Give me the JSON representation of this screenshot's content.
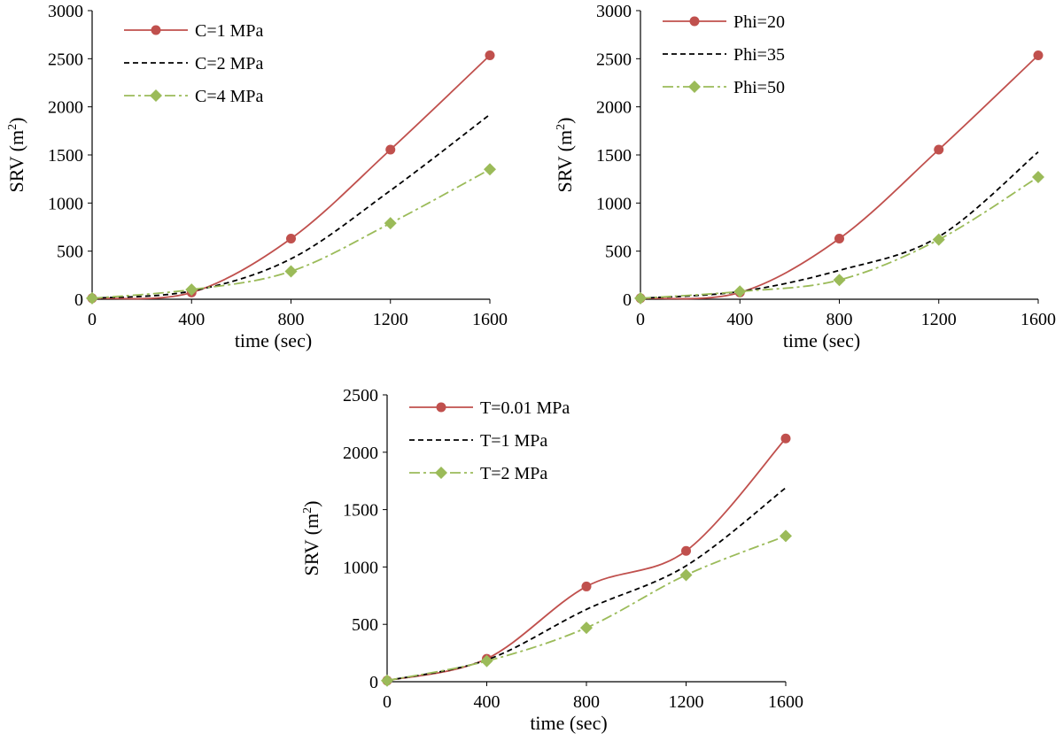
{
  "colors": {
    "red": "#c0504d",
    "black": "#000000",
    "green": "#9bbb59"
  },
  "chart_data": [
    {
      "type": "line",
      "xlabel": "time (sec)",
      "ylabel": "SRV (m",
      "ylabel_sup": "2",
      "ylabel_end": ")",
      "xlim": [
        0,
        1600
      ],
      "ylim": [
        0,
        3000
      ],
      "x_ticks": [
        "0",
        "400",
        "800",
        "1200",
        "1600"
      ],
      "y_ticks": [
        "0",
        "500",
        "1000",
        "1500",
        "2000",
        "2500",
        "3000"
      ],
      "legend_position": "top-left",
      "series": [
        {
          "name": "C=1 MPa",
          "style": "solid-circle",
          "x": [
            0,
            400,
            800,
            1200,
            1600
          ],
          "y": [
            10,
            70,
            630,
            1555,
            2535
          ]
        },
        {
          "name": "C=2 MPa",
          "style": "dashed",
          "x": [
            0,
            400,
            800,
            1200,
            1600
          ],
          "y": [
            10,
            85,
            420,
            1130,
            1920
          ]
        },
        {
          "name": "C=4 MPa",
          "style": "dashdot-diamond",
          "x": [
            0,
            400,
            800,
            1200,
            1600
          ],
          "y": [
            10,
            100,
            290,
            790,
            1350
          ]
        }
      ]
    },
    {
      "type": "line",
      "xlabel": "time (sec)",
      "ylabel": "SRV (m",
      "ylabel_sup": "2",
      "ylabel_end": ")",
      "xlim": [
        0,
        1600
      ],
      "ylim": [
        0,
        3000
      ],
      "x_ticks": [
        "0",
        "400",
        "800",
        "1200",
        "1600"
      ],
      "y_ticks": [
        "0",
        "500",
        "1000",
        "1500",
        "2000",
        "2500",
        "3000"
      ],
      "legend_position": "top-left",
      "series": [
        {
          "name": "Phi=20",
          "style": "solid-circle",
          "x": [
            0,
            400,
            800,
            1200,
            1600
          ],
          "y": [
            10,
            70,
            630,
            1555,
            2535
          ]
        },
        {
          "name": "Phi=35",
          "style": "dashed",
          "x": [
            0,
            400,
            800,
            1200,
            1600
          ],
          "y": [
            10,
            80,
            300,
            650,
            1530
          ]
        },
        {
          "name": "Phi=50",
          "style": "dashdot-diamond",
          "x": [
            0,
            400,
            800,
            1200,
            1600
          ],
          "y": [
            10,
            80,
            200,
            620,
            1270
          ]
        }
      ]
    },
    {
      "type": "line",
      "xlabel": "time (sec)",
      "ylabel": "SRV (m",
      "ylabel_sup": "2",
      "ylabel_end": ")",
      "xlim": [
        0,
        1600
      ],
      "ylim": [
        0,
        2500
      ],
      "x_ticks": [
        "0",
        "400",
        "800",
        "1200",
        "1600"
      ],
      "y_ticks": [
        "0",
        "500",
        "1000",
        "1500",
        "2000",
        "2500"
      ],
      "legend_position": "top-left",
      "series": [
        {
          "name": "T=0.01 MPa",
          "style": "solid-circle",
          "x": [
            0,
            400,
            800,
            1200,
            1600
          ],
          "y": [
            10,
            200,
            830,
            1140,
            2120
          ]
        },
        {
          "name": "T=1 MPa",
          "style": "dashed",
          "x": [
            0,
            400,
            800,
            1200,
            1600
          ],
          "y": [
            10,
            190,
            630,
            1010,
            1690
          ]
        },
        {
          "name": "T=2 MPa",
          "style": "dashdot-diamond",
          "x": [
            0,
            400,
            800,
            1200,
            1600
          ],
          "y": [
            10,
            180,
            470,
            930,
            1270
          ]
        }
      ]
    }
  ]
}
